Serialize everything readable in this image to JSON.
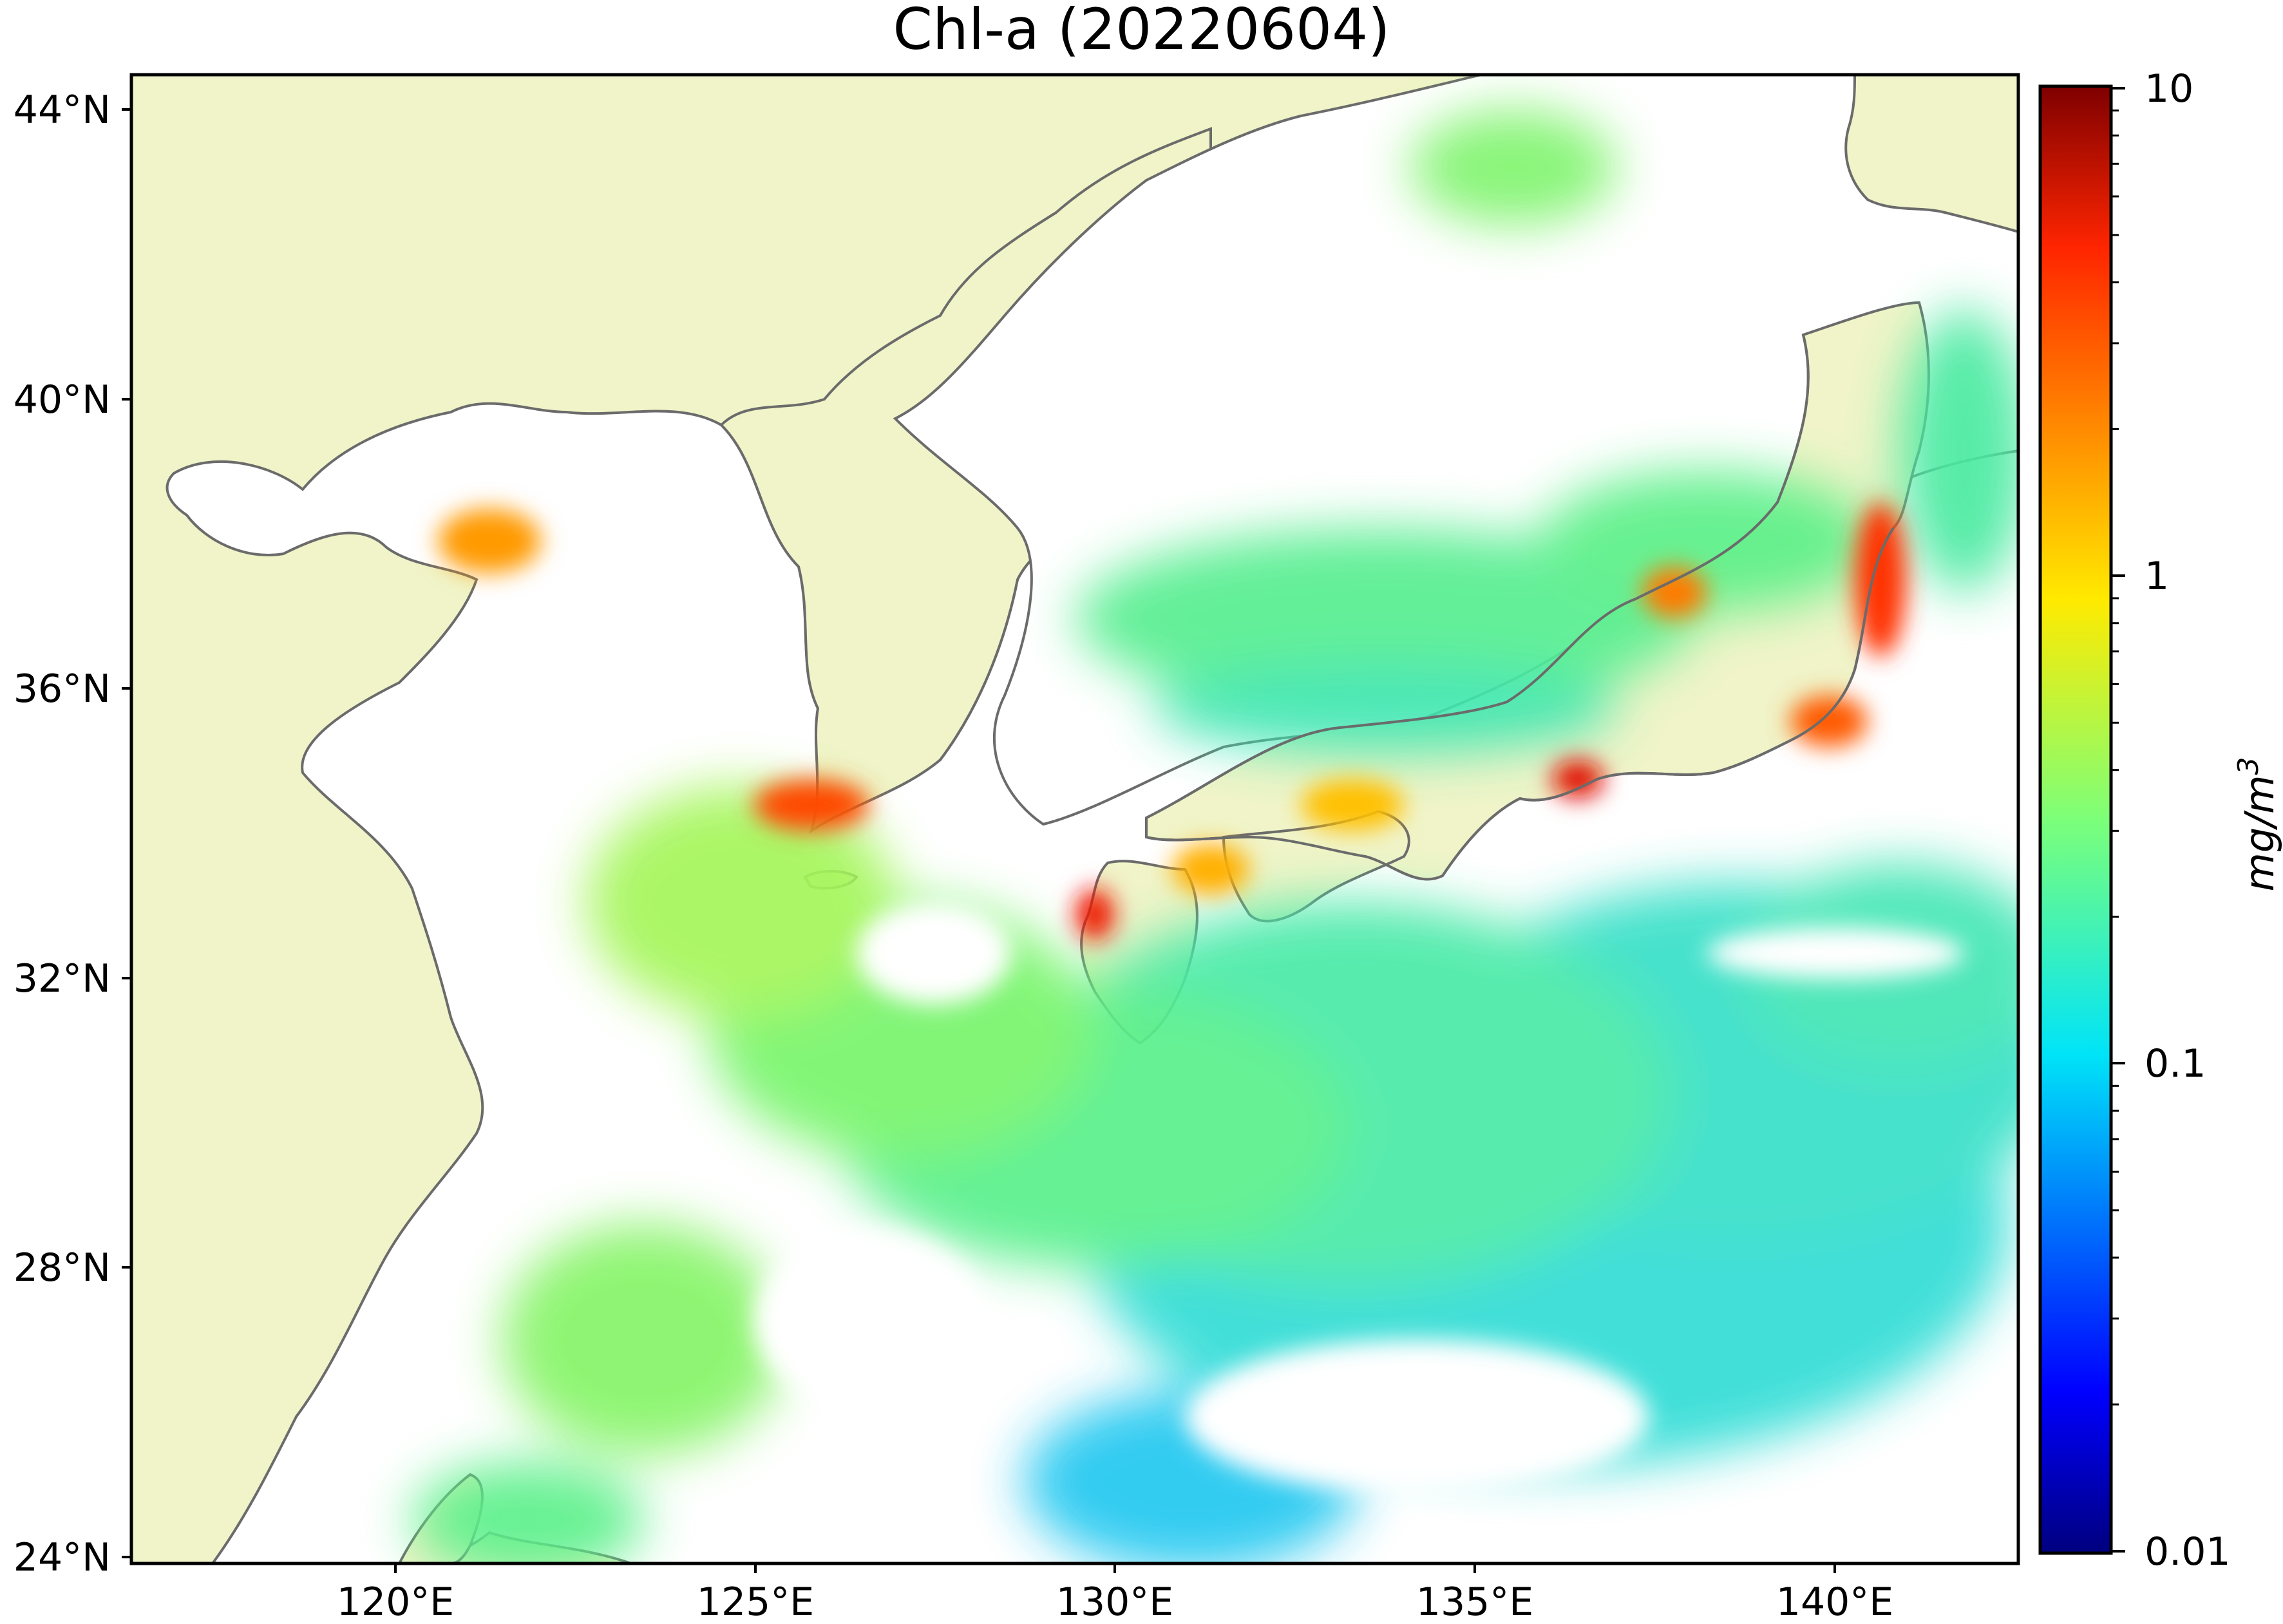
{
  "map": {
    "title": "Chl-a (20220604)",
    "lon_labels": [
      "120°E",
      "125°E",
      "130°E",
      "135°E",
      "140°E"
    ],
    "lat_labels": [
      "44°N",
      "40°N",
      "36°N",
      "32°N",
      "28°N",
      "24°N"
    ],
    "extent": {
      "lon": [
        117.0,
        143.3
      ],
      "lat": [
        23.9,
        44.5
      ]
    },
    "colors": {
      "land": "#f0f4c8",
      "coast": "#6b6b6b",
      "cloud": "#ffffff"
    }
  },
  "colorbar": {
    "ticks": [
      "10",
      "1",
      "0.1",
      "0.01"
    ],
    "tick_values": [
      10,
      1,
      0.1,
      0.01
    ],
    "scale": "log",
    "range": [
      0.01,
      10
    ],
    "unit_label": "mg/m3",
    "colormap": "jet"
  }
}
